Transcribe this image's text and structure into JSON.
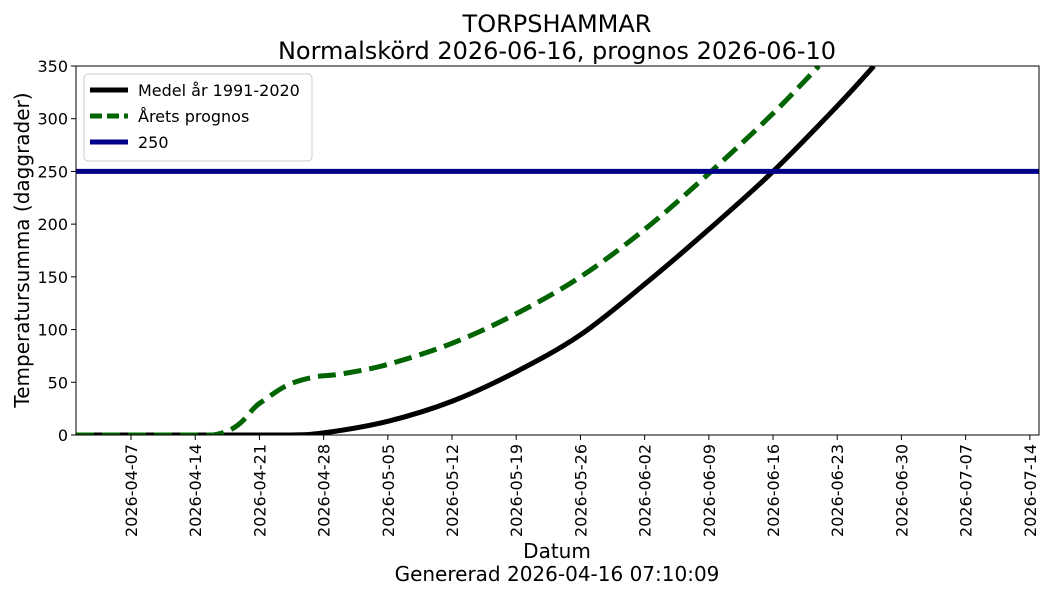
{
  "chart_data": {
    "type": "line",
    "title": "TORPSHAMMAR",
    "subtitle": "Normalskörd 2026-06-16, prognos 2026-06-10",
    "xlabel": "Datum",
    "footer": "Genererad 2026-04-16 07:10:09",
    "ylabel": "Temperatursumma (daggrader)",
    "xlim": [
      "2026-04-01",
      "2026-07-15"
    ],
    "ylim": [
      0,
      350
    ],
    "x_ticks": [
      "2026-04-07",
      "2026-04-14",
      "2026-04-21",
      "2026-04-28",
      "2026-05-05",
      "2026-05-12",
      "2026-05-19",
      "2026-05-26",
      "2026-06-02",
      "2026-06-09",
      "2026-06-16",
      "2026-06-23",
      "2026-06-30",
      "2026-07-07",
      "2026-07-14"
    ],
    "y_ticks": [
      0,
      50,
      100,
      150,
      200,
      250,
      300,
      350
    ],
    "grid": false,
    "legend_placement": "top-left",
    "series": [
      {
        "name": "Medel år 1991-2020",
        "color": "#000000",
        "style": "solid",
        "x": [
          "2026-04-01",
          "2026-04-14",
          "2026-04-24",
          "2026-04-28",
          "2026-05-05",
          "2026-05-12",
          "2026-05-19",
          "2026-05-26",
          "2026-06-02",
          "2026-06-09",
          "2026-06-16",
          "2026-06-23",
          "2026-06-27"
        ],
        "y": [
          0,
          0,
          0,
          2,
          13,
          32,
          60,
          95,
          143,
          195,
          250,
          312,
          350
        ]
      },
      {
        "name": "Årets prognos",
        "color": "#006400",
        "style": "dashed",
        "x": [
          "2026-04-01",
          "2026-04-16",
          "2026-04-21",
          "2026-04-24",
          "2026-04-27",
          "2026-04-30",
          "2026-05-05",
          "2026-05-12",
          "2026-05-19",
          "2026-05-26",
          "2026-06-02",
          "2026-06-09",
          "2026-06-16",
          "2026-06-21"
        ],
        "y": [
          0,
          0,
          30,
          47,
          55,
          58,
          67,
          87,
          115,
          150,
          195,
          248,
          305,
          350
        ]
      },
      {
        "name": "250",
        "color": "#00008b",
        "style": "hline",
        "y_value": 250
      }
    ]
  }
}
